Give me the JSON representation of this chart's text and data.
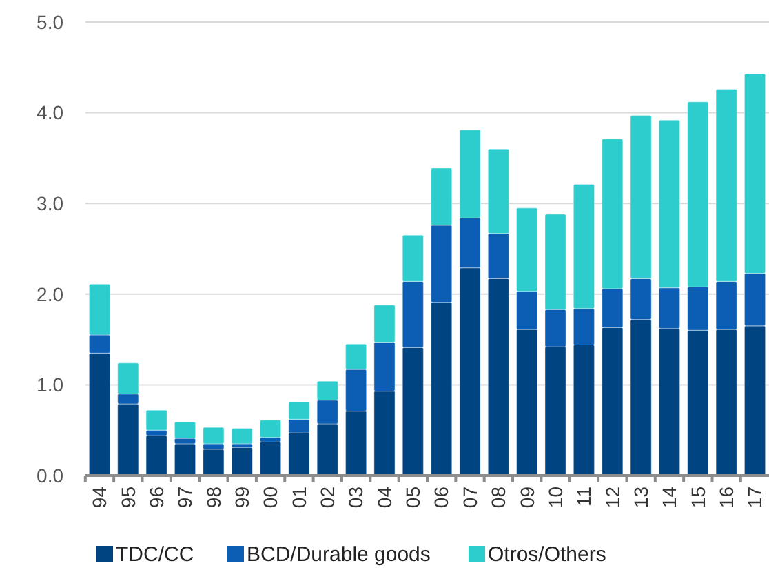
{
  "chart_data": {
    "type": "bar",
    "stacked": true,
    "categories": [
      "94",
      "95",
      "96",
      "97",
      "98",
      "99",
      "00",
      "01",
      "02",
      "03",
      "04",
      "05",
      "06",
      "07",
      "08",
      "09",
      "10",
      "11",
      "12",
      "13",
      "14",
      "15",
      "16",
      "17"
    ],
    "series": [
      {
        "name": "TDC/CC",
        "color": "#004481",
        "values": [
          1.35,
          0.79,
          0.44,
          0.35,
          0.29,
          0.31,
          0.37,
          0.47,
          0.57,
          0.71,
          0.93,
          1.41,
          1.91,
          2.29,
          2.17,
          1.61,
          1.42,
          1.44,
          1.63,
          1.72,
          1.62,
          1.6,
          1.61,
          1.65
        ]
      },
      {
        "name": "BCD/Durable goods",
        "color": "#0b5eb4",
        "values": [
          0.2,
          0.11,
          0.06,
          0.06,
          0.06,
          0.04,
          0.05,
          0.15,
          0.26,
          0.46,
          0.54,
          0.73,
          0.85,
          0.55,
          0.5,
          0.42,
          0.41,
          0.4,
          0.43,
          0.45,
          0.45,
          0.48,
          0.53,
          0.58
        ]
      },
      {
        "name": "Otros/Others",
        "color": "#2dcccd",
        "values": [
          0.56,
          0.34,
          0.22,
          0.18,
          0.18,
          0.17,
          0.19,
          0.19,
          0.21,
          0.28,
          0.41,
          0.51,
          0.63,
          0.97,
          0.93,
          0.92,
          1.05,
          1.37,
          1.65,
          1.8,
          1.85,
          2.04,
          2.12,
          2.2
        ]
      }
    ],
    "ylim": [
      0,
      5
    ],
    "yticks": [
      {
        "value": 0,
        "label": "0.0"
      },
      {
        "value": 1,
        "label": "1.0"
      },
      {
        "value": 2,
        "label": "2.0"
      },
      {
        "value": 3,
        "label": "3.0"
      },
      {
        "value": 4,
        "label": "4.0"
      },
      {
        "value": 5,
        "label": "5.0"
      }
    ],
    "grid": "y",
    "legend": "bottom"
  }
}
